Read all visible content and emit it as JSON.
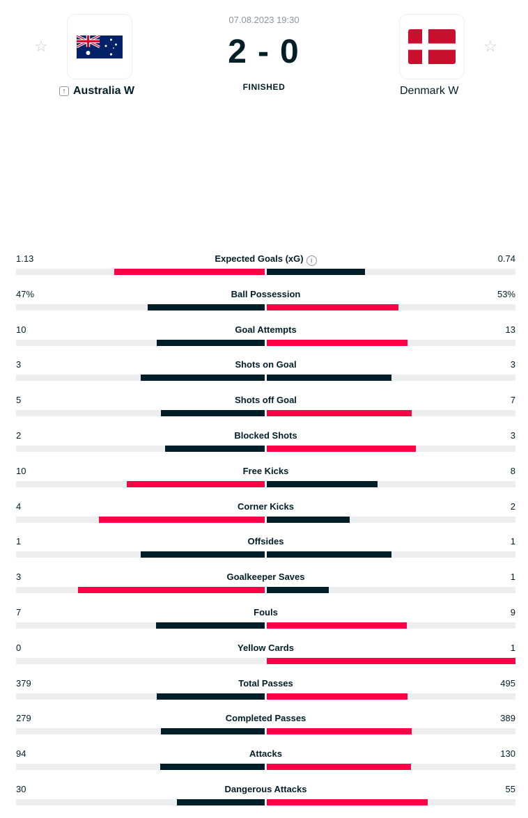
{
  "match": {
    "datetime": "07.08.2023 19:30",
    "score_home": "2",
    "score_sep": "-",
    "score_away": "0",
    "status": "FINISHED"
  },
  "home": {
    "name": "Australia W",
    "flag": "australia-flag"
  },
  "away": {
    "name": "Denmark W",
    "flag": "denmark-flag"
  },
  "colors": {
    "winner": "#ff0046",
    "other": "#001e28",
    "track": "#eceef0"
  },
  "stats": [
    {
      "label": "Expected Goals (xG)",
      "home": "1.13",
      "away": "0.74",
      "home_num": 1.13,
      "away_num": 0.74,
      "info": true
    },
    {
      "label": "Ball Possession",
      "home": "47%",
      "away": "53%",
      "home_num": 47,
      "away_num": 53
    },
    {
      "label": "Goal Attempts",
      "home": "10",
      "away": "13",
      "home_num": 10,
      "away_num": 13
    },
    {
      "label": "Shots on Goal",
      "home": "3",
      "away": "3",
      "home_num": 3,
      "away_num": 3
    },
    {
      "label": "Shots off Goal",
      "home": "5",
      "away": "7",
      "home_num": 5,
      "away_num": 7
    },
    {
      "label": "Blocked Shots",
      "home": "2",
      "away": "3",
      "home_num": 2,
      "away_num": 3
    },
    {
      "label": "Free Kicks",
      "home": "10",
      "away": "8",
      "home_num": 10,
      "away_num": 8
    },
    {
      "label": "Corner Kicks",
      "home": "4",
      "away": "2",
      "home_num": 4,
      "away_num": 2
    },
    {
      "label": "Offsides",
      "home": "1",
      "away": "1",
      "home_num": 1,
      "away_num": 1
    },
    {
      "label": "Goalkeeper Saves",
      "home": "3",
      "away": "1",
      "home_num": 3,
      "away_num": 1
    },
    {
      "label": "Fouls",
      "home": "7",
      "away": "9",
      "home_num": 7,
      "away_num": 9
    },
    {
      "label": "Yellow Cards",
      "home": "0",
      "away": "1",
      "home_num": 0,
      "away_num": 1
    },
    {
      "label": "Total Passes",
      "home": "379",
      "away": "495",
      "home_num": 379,
      "away_num": 495
    },
    {
      "label": "Completed Passes",
      "home": "279",
      "away": "389",
      "home_num": 279,
      "away_num": 389
    },
    {
      "label": "Attacks",
      "home": "94",
      "away": "130",
      "home_num": 94,
      "away_num": 130
    },
    {
      "label": "Dangerous Attacks",
      "home": "30",
      "away": "55",
      "home_num": 30,
      "away_num": 55
    }
  ]
}
